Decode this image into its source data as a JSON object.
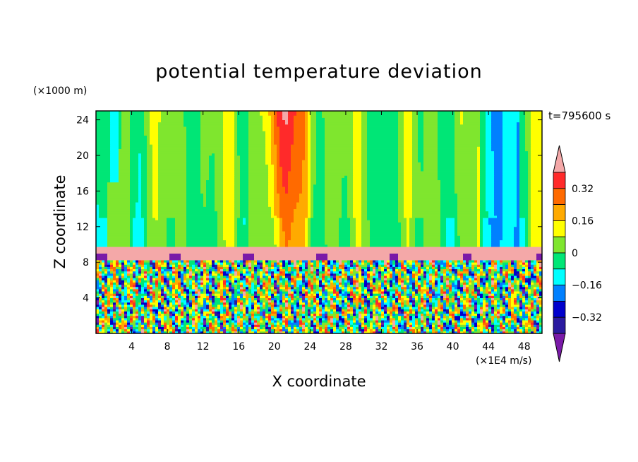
{
  "chart_data": {
    "type": "heatmap",
    "title": "potential temperature deviation",
    "annotation": "t=795600 s",
    "xlabel": "X coordinate",
    "ylabel": "Z coordinate",
    "x_unit": "(×1E4 m/s)",
    "y_unit": "(×1000 m)",
    "xlim": [
      0,
      50
    ],
    "ylim": [
      0,
      25
    ],
    "x_ticks": [
      4,
      8,
      12,
      16,
      20,
      24,
      28,
      32,
      36,
      40,
      44,
      48
    ],
    "y_ticks": [
      4,
      8,
      12,
      16,
      20,
      24
    ],
    "colorbar": {
      "tick_labels": [
        "0.32",
        "0.16",
        "0",
        "-0.16",
        "-0.32"
      ],
      "tick_values": [
        0.32,
        0.16,
        0,
        -0.16,
        -0.32
      ],
      "levels": [
        {
          "lo": 0.4,
          "hi": null,
          "color": "#f4a8a8"
        },
        {
          "lo": 0.32,
          "hi": 0.4,
          "color": "#ff2a2a"
        },
        {
          "lo": 0.24,
          "hi": 0.32,
          "color": "#ff6a00"
        },
        {
          "lo": 0.16,
          "hi": 0.24,
          "color": "#ffaa00"
        },
        {
          "lo": 0.08,
          "hi": 0.16,
          "color": "#ffff00"
        },
        {
          "lo": 0.0,
          "hi": 0.08,
          "color": "#7fe62e"
        },
        {
          "lo": -0.08,
          "hi": 0.0,
          "color": "#00e676"
        },
        {
          "lo": -0.16,
          "hi": -0.08,
          "color": "#00ffff"
        },
        {
          "lo": -0.24,
          "hi": -0.16,
          "color": "#0080ff"
        },
        {
          "lo": -0.32,
          "hi": -0.24,
          "color": "#0000cc"
        },
        {
          "lo": -0.4,
          "hi": -0.32,
          "color": "#2a1aa0"
        },
        {
          "lo": null,
          "hi": -0.4,
          "color": "#7a1aa8"
        }
      ]
    },
    "regions": {
      "upper_layer": {
        "z_range": [
          10,
          25
        ],
        "dominant": "0 to 0.08 (green)",
        "warm_plume_x": [
          18,
          24
        ],
        "warm_plume_max": 0.32,
        "cool_patches_x": [
          0,
          4,
          42,
          48
        ]
      },
      "inversion_band": {
        "z_range": [
          8.2,
          9.8
        ],
        "value": "> 0.4"
      },
      "lower_layer": {
        "z_range": [
          0,
          8.2
        ],
        "description": "turbulent mixture spanning -0.4 to 0.4"
      }
    }
  }
}
